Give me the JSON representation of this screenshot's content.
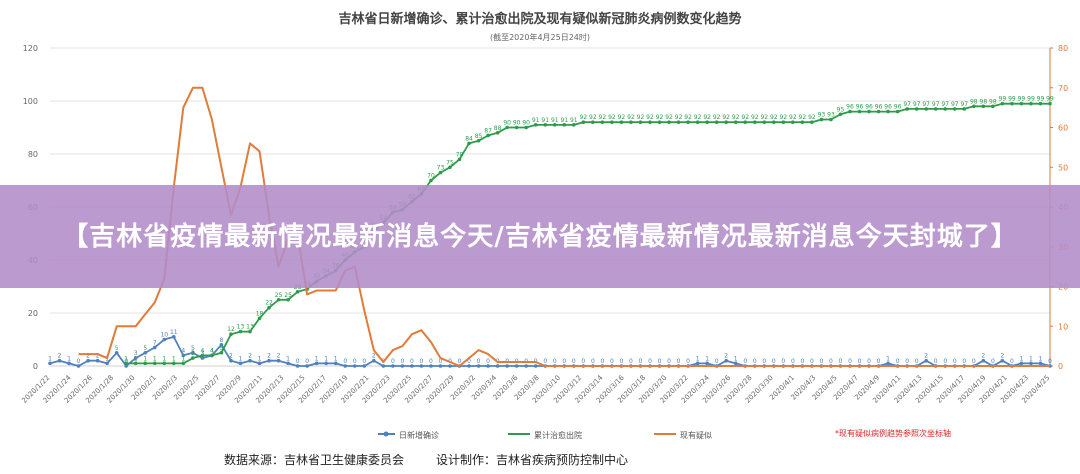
{
  "banner": {
    "text": "【吉林省疫情最新情况最新消息今天/吉林省疫情最新情况最新消息今天封城了】"
  },
  "footer": {
    "source": "数据来源：吉林省卫生健康委员会",
    "maker": "设计制作：吉林省疾病预防控制中心"
  },
  "chart_data": {
    "type": "line",
    "title": "吉林省日新增确诊、累计治愈出院及现有疑似新冠肺炎病例数变化趋势",
    "subtitle": "(截至2020年4月25日24时)",
    "note": "*现有疑似病例趋势参照次坐标轴",
    "ylim": [
      0,
      120
    ],
    "y2lim": [
      0,
      80
    ],
    "yticks": [
      0,
      20,
      40,
      60,
      80,
      100,
      120
    ],
    "y2ticks": [
      0,
      10,
      20,
      30,
      40,
      50,
      60,
      70,
      80
    ],
    "x_tick_labels": [
      "2020/1/22",
      "2020/1/24",
      "2020/1/26",
      "2020/1/28",
      "2020/1/30",
      "2020/2/1",
      "2020/2/3",
      "2020/2/5",
      "2020/2/7",
      "2020/2/9",
      "2020/2/11",
      "2020/2/13",
      "2020/2/15",
      "2020/2/17",
      "2020/2/19",
      "2020/2/21",
      "2020/2/23",
      "2020/2/25",
      "2020/2/27",
      "2020/2/29",
      "2020/3/2",
      "2020/3/4",
      "2020/3/6",
      "2020/3/8",
      "2020/3/10",
      "2020/3/12",
      "2020/3/14",
      "2020/3/16",
      "2020/3/18",
      "2020/3/20",
      "2020/3/22",
      "2020/3/24",
      "2020/3/26",
      "2020/3/28",
      "2020/3/30",
      "2020/4/1",
      "2020/4/3",
      "2020/4/5",
      "2020/4/7",
      "2020/4/9",
      "2020/4/11",
      "2020/4/13",
      "2020/4/15",
      "2020/4/17",
      "2020/4/19",
      "2020/4/21",
      "2020/4/23",
      "2020/4/25"
    ],
    "colors": {
      "new": "#4f81bd",
      "cured": "#2e9b4a",
      "suspect": "#e07b39"
    },
    "series": [
      {
        "name": "日新增确诊",
        "axis": "left",
        "show_labels": true,
        "values": [
          1,
          2,
          1,
          0,
          2,
          2,
          1,
          5,
          0,
          3,
          5,
          7,
          10,
          11,
          4,
          5,
          3,
          4,
          8,
          2,
          1,
          2,
          1,
          2,
          2,
          1,
          0,
          0,
          1,
          1,
          1,
          0,
          0,
          0,
          2,
          0,
          0,
          0,
          0,
          0,
          0,
          0,
          0,
          0,
          0,
          0,
          0,
          0,
          0,
          0,
          0,
          0,
          0,
          0,
          0,
          0,
          0,
          0,
          0,
          0,
          0,
          0,
          0,
          0,
          0,
          0,
          0,
          0,
          1,
          1,
          0,
          2,
          1,
          0,
          0,
          0,
          0,
          0,
          0,
          0,
          0,
          0,
          0,
          0,
          0,
          0,
          0,
          0,
          1,
          0,
          0,
          0,
          2,
          0,
          0,
          0,
          0,
          0,
          2,
          0,
          2,
          0,
          1,
          1,
          1,
          0
        ]
      },
      {
        "name": "累计治愈出院",
        "axis": "left",
        "show_labels": true,
        "values": [
          null,
          null,
          null,
          null,
          null,
          null,
          null,
          null,
          1,
          1,
          1,
          1,
          1,
          1,
          1,
          3,
          4,
          4,
          5,
          12,
          13,
          13,
          18,
          22,
          25,
          25,
          28,
          29,
          32,
          34,
          36,
          40,
          43,
          45,
          51,
          54,
          58,
          59,
          62,
          65,
          70,
          73,
          75,
          78,
          84,
          85,
          87,
          88,
          90,
          90,
          90,
          91,
          91,
          91,
          91,
          91,
          92,
          92,
          92,
          92,
          92,
          92,
          92,
          92,
          92,
          92,
          92,
          92,
          92,
          92,
          92,
          92,
          92,
          92,
          92,
          92,
          92,
          92,
          92,
          92,
          92,
          93,
          93,
          95,
          96,
          96,
          96,
          96,
          96,
          96,
          97,
          97,
          97,
          97,
          97,
          97,
          97,
          98,
          98,
          98,
          99,
          99,
          99,
          99,
          99,
          99
        ]
      },
      {
        "name": "现有疑似",
        "axis": "right",
        "show_labels": false,
        "values": [
          null,
          null,
          null,
          3,
          3,
          3,
          2,
          10,
          10,
          10,
          13,
          16,
          22,
          45,
          65,
          70,
          70,
          62,
          50,
          38,
          45,
          56,
          54,
          38,
          25,
          32,
          33,
          18,
          19,
          19,
          19,
          24,
          25,
          14,
          4,
          1,
          4,
          5,
          8,
          9,
          6,
          2,
          1,
          0,
          2,
          4,
          3,
          1,
          1,
          1,
          1,
          1,
          0,
          0,
          0,
          0,
          0,
          0,
          0,
          0,
          0,
          0,
          0,
          0,
          0,
          0,
          0,
          0,
          0,
          0,
          0,
          0,
          0,
          0,
          0,
          0,
          0,
          0,
          0,
          0,
          0,
          0,
          0,
          0,
          0,
          0,
          0,
          0,
          0,
          0,
          0,
          0,
          0,
          0,
          0,
          0,
          0,
          0,
          0,
          0,
          0,
          0,
          0,
          0,
          0,
          0
        ]
      }
    ]
  }
}
